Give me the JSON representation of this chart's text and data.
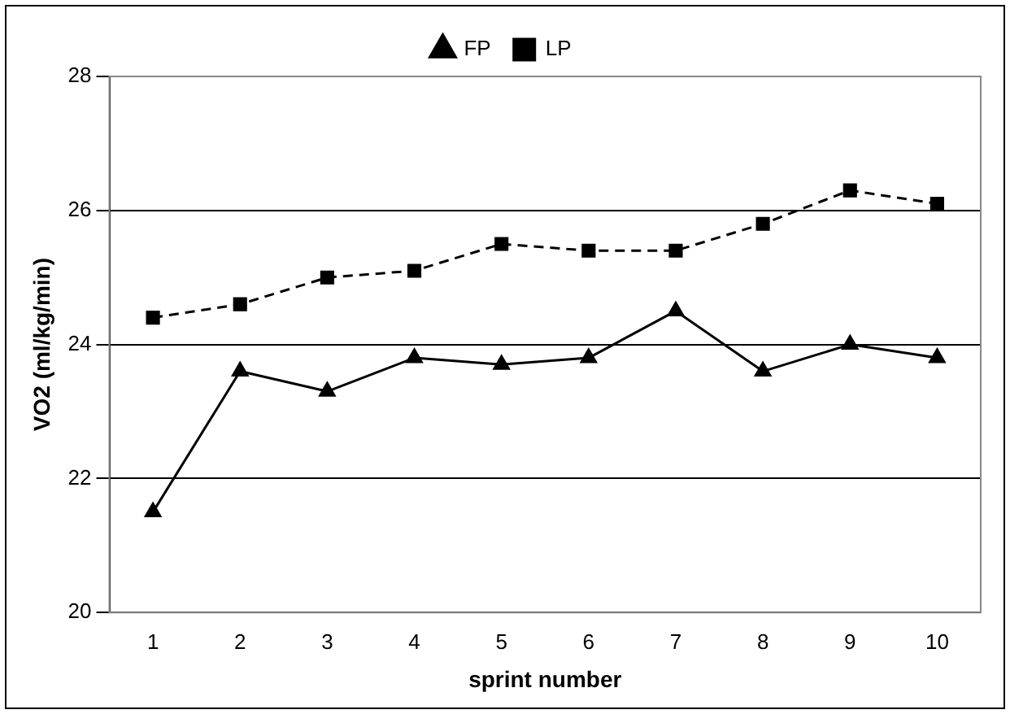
{
  "chart_data": {
    "type": "line",
    "xlabel": "sprint number",
    "ylabel": "VO2 (ml/kg/min)",
    "categories": [
      "1",
      "2",
      "3",
      "4",
      "5",
      "6",
      "7",
      "8",
      "9",
      "10"
    ],
    "series": [
      {
        "name": "FP",
        "color": "#000000",
        "marker": "triangle",
        "line_style": "solid",
        "values": [
          21.5,
          23.6,
          23.3,
          23.8,
          23.7,
          23.8,
          24.5,
          23.6,
          24.0,
          23.8
        ]
      },
      {
        "name": "LP",
        "color": "#000000",
        "marker": "square",
        "line_style": "dashed",
        "values": [
          24.4,
          24.6,
          25.0,
          25.1,
          25.5,
          25.4,
          25.4,
          25.8,
          26.3,
          26.1
        ]
      }
    ],
    "ylim": [
      20,
      28
    ],
    "yticks": [
      20,
      22,
      24,
      26,
      28
    ],
    "grid": "y",
    "legend": "top"
  }
}
